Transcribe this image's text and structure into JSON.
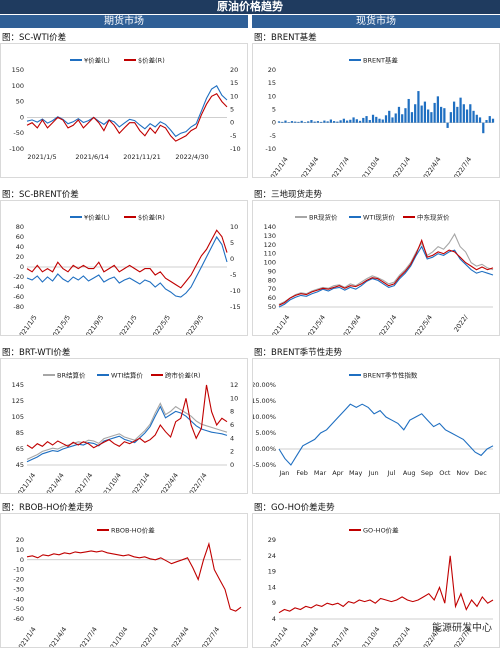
{
  "page_title": "原油价格趋势",
  "columns": {
    "left": "期货市场",
    "right": "现货市场"
  },
  "watermark": "能源研发中心",
  "colors": {
    "blue": "#1f6fc1",
    "red": "#c00000",
    "grey": "#a6a6a6"
  },
  "chart_data": [
    {
      "id": "sc_wti",
      "type": "line",
      "title": "图：SC-WTI价差",
      "x_ticks": [
        "2021/1/5",
        "2021/6/14",
        "2021/11/21",
        "2022/4/30"
      ],
      "y_ticks": [
        "-100",
        "-50",
        "0",
        "50",
        "100",
        "150"
      ],
      "y2_ticks": [
        "-10",
        "-5",
        "0",
        "5",
        "10",
        "15",
        "20"
      ],
      "ylim": [
        -100,
        150
      ],
      "y2lim": [
        -10,
        20
      ],
      "dual": true,
      "series": [
        {
          "name": "¥价差(L)",
          "color": "blue",
          "axis": "L",
          "values": [
            -12,
            -8,
            -15,
            -5,
            -18,
            -10,
            2,
            -6,
            -20,
            -14,
            -4,
            -16,
            -10,
            0,
            -12,
            -22,
            -8,
            -14,
            -30,
            -18,
            -6,
            -10,
            -24,
            -36,
            -20,
            -30,
            -14,
            -22,
            -40,
            -60,
            -50,
            -45,
            -30,
            -20,
            20,
            60,
            90,
            100,
            70,
            55
          ]
        },
        {
          "name": "$价差(R)",
          "color": "red",
          "axis": "R",
          "values": [
            -1,
            0,
            -2,
            1,
            -2,
            0,
            2,
            1,
            -2,
            -1,
            1,
            -2,
            0,
            2,
            0,
            -3,
            1,
            -1,
            -4,
            -2,
            0,
            0,
            -3,
            -5,
            -2,
            -4,
            -1,
            -2,
            -5,
            -7,
            -6,
            -5,
            -3,
            -2,
            3,
            7,
            10,
            11,
            8,
            6
          ]
        }
      ]
    },
    {
      "id": "brent_basis",
      "type": "bar",
      "title": "图：BRENT基差",
      "x_ticks": [
        "2021/1/4",
        "2021/4/4",
        "2021/7/4",
        "2021/10/4",
        "2022/1/4",
        "2022/4/4",
        "2022/7/4"
      ],
      "y_ticks": [
        "-10",
        "-5",
        "0",
        "5",
        "10",
        "15",
        "20"
      ],
      "ylim": [
        -10,
        20
      ],
      "series": [
        {
          "name": "BRENT基差",
          "color": "blue",
          "values": [
            0.5,
            0.3,
            0.8,
            0.2,
            0.6,
            0.4,
            0.3,
            0.7,
            0.2,
            0.5,
            1.0,
            0.4,
            0.6,
            0.3,
            0.8,
            0.5,
            1.2,
            0.6,
            0.4,
            0.9,
            1.5,
            0.8,
            1.1,
            2.0,
            1.3,
            0.7,
            1.8,
            2.5,
            1.0,
            3.0,
            2.2,
            1.5,
            1.2,
            2.8,
            4.5,
            2.0,
            3.5,
            6.0,
            3.2,
            5.5,
            9.0,
            4.0,
            7.0,
            12.0,
            6.5,
            8.0,
            5.0,
            4.0,
            7.5,
            10.0,
            6.0,
            5.5,
            -2.0,
            4.0,
            8.0,
            6.0,
            9.5,
            7.0,
            5.0,
            7.0,
            4.5,
            3.0,
            2.0,
            -4.0,
            1.0,
            2.5,
            1.5
          ]
        }
      ]
    },
    {
      "id": "sc_brent",
      "type": "line",
      "title": "图：SC-BRENT价差",
      "x_ticks": [
        "2021/1/5",
        "2021/5/5",
        "2021/9/5",
        "2022/1/5",
        "2022/5/5",
        "2022/9/5"
      ],
      "y_ticks": [
        "-80",
        "-60",
        "-40",
        "-20",
        "0",
        "20",
        "40",
        "60",
        "80"
      ],
      "y2_ticks": [
        "-15",
        "-10",
        "-5",
        "0",
        "5",
        "10"
      ],
      "ylim": [
        -80,
        80
      ],
      "y2lim": [
        -15,
        10
      ],
      "dual": true,
      "series": [
        {
          "name": "¥价差(L)",
          "color": "blue",
          "axis": "L",
          "values": [
            -22,
            -26,
            -18,
            -30,
            -20,
            -28,
            -14,
            -24,
            -30,
            -20,
            -26,
            -18,
            -28,
            -22,
            -16,
            -30,
            -24,
            -20,
            -32,
            -26,
            -22,
            -28,
            -34,
            -26,
            -30,
            -40,
            -32,
            -44,
            -50,
            -58,
            -60,
            -52,
            -40,
            -20,
            0,
            20,
            40,
            60,
            45,
            10
          ]
        },
        {
          "name": "$价差(R)",
          "color": "red",
          "axis": "R",
          "values": [
            -3,
            -4,
            -2,
            -4,
            -3,
            -4,
            -1,
            -3,
            -4,
            -2,
            -3,
            -2,
            -3,
            -3,
            -1,
            -4,
            -3,
            -2,
            -4,
            -3,
            -2,
            -3,
            -4,
            -3,
            -3,
            -5,
            -4,
            -6,
            -7,
            -8,
            -9,
            -7,
            -5,
            -2,
            1,
            3,
            6,
            9,
            7,
            2
          ]
        }
      ]
    },
    {
      "id": "three_spot",
      "type": "line",
      "title": "图：三地现货走势",
      "x_ticks": [
        "2021/1/4",
        "2021/5/4",
        "2021/9/4",
        "2022/1/4",
        "2022/5/4",
        "2022/"
      ],
      "y_ticks": [
        "50",
        "60",
        "70",
        "80",
        "90",
        "100",
        "110",
        "120",
        "130",
        "140"
      ],
      "ylim": [
        50,
        140
      ],
      "series": [
        {
          "name": "BR现货价",
          "color": "grey",
          "values": [
            53,
            56,
            60,
            64,
            66,
            65,
            68,
            70,
            72,
            71,
            74,
            75,
            72,
            76,
            74,
            78,
            82,
            85,
            83,
            80,
            76,
            78,
            86,
            92,
            100,
            112,
            122,
            108,
            112,
            118,
            115,
            122,
            132,
            118,
            112,
            100,
            96,
            98,
            94,
            92
          ]
        },
        {
          "name": "WTI现货价",
          "color": "blue",
          "values": [
            50,
            53,
            58,
            61,
            63,
            62,
            65,
            67,
            70,
            68,
            71,
            72,
            69,
            72,
            70,
            74,
            79,
            82,
            80,
            76,
            72,
            74,
            82,
            88,
            96,
            108,
            118,
            104,
            106,
            110,
            108,
            112,
            114,
            104,
            98,
            92,
            88,
            90,
            88,
            86
          ]
        },
        {
          "name": "中东现货价",
          "color": "red",
          "values": [
            52,
            55,
            60,
            63,
            65,
            64,
            67,
            69,
            71,
            70,
            72,
            74,
            71,
            74,
            73,
            76,
            80,
            83,
            82,
            78,
            74,
            76,
            84,
            90,
            98,
            110,
            125,
            106,
            108,
            112,
            110,
            114,
            112,
            106,
            100,
            96,
            92,
            95,
            92,
            94
          ]
        }
      ]
    },
    {
      "id": "brt_wti",
      "type": "line",
      "title": "图：BRT-WTI价差",
      "x_ticks": [
        "2021/1/4",
        "2021/4/4",
        "2021/7/4",
        "2021/10/4",
        "2022/1/4",
        "2022/4/4",
        "2022/7/4"
      ],
      "y_ticks": [
        "45",
        "65",
        "85",
        "105",
        "125",
        "145"
      ],
      "y2_ticks": [
        "0",
        "2",
        "4",
        "6",
        "8",
        "10",
        "12"
      ],
      "ylim": [
        45,
        145
      ],
      "y2lim": [
        0,
        12
      ],
      "dual": true,
      "series": [
        {
          "name": "BR结算价",
          "color": "grey",
          "axis": "L",
          "values": [
            52,
            55,
            58,
            62,
            64,
            66,
            65,
            68,
            70,
            72,
            74,
            73,
            76,
            75,
            72,
            78,
            80,
            82,
            84,
            80,
            78,
            76,
            82,
            88,
            96,
            110,
            122,
            108,
            112,
            118,
            114,
            110,
            106,
            100,
            96,
            94,
            92,
            90,
            88,
            86
          ]
        },
        {
          "name": "WTI结算价",
          "color": "blue",
          "axis": "L",
          "values": [
            49,
            52,
            55,
            59,
            61,
            63,
            62,
            65,
            67,
            69,
            71,
            70,
            73,
            72,
            69,
            75,
            77,
            79,
            81,
            77,
            75,
            73,
            79,
            85,
            93,
            106,
            118,
            104,
            108,
            112,
            110,
            106,
            100,
            94,
            90,
            88,
            86,
            85,
            84,
            82
          ]
        },
        {
          "name": "跨市价差(R)",
          "color": "red",
          "axis": "R",
          "values": [
            3,
            2.5,
            3.2,
            2.8,
            3.5,
            3,
            3.6,
            3.2,
            2.8,
            3.4,
            3,
            3.5,
            3.2,
            2.6,
            3,
            3.4,
            3.8,
            3.2,
            2.8,
            3.5,
            3.2,
            3.6,
            4,
            3.4,
            3.8,
            4.5,
            6,
            5,
            4.2,
            6.5,
            7,
            10,
            6,
            4,
            5.5,
            12,
            8,
            6,
            7,
            6.5
          ]
        }
      ]
    },
    {
      "id": "brent_season",
      "type": "line",
      "title": "图：BRENT季节性走势",
      "x_ticks": [
        "Jan",
        "Feb",
        "Mar",
        "Apr",
        "May",
        "Jun",
        "Jul",
        "Aug",
        "Sep",
        "Oct",
        "Nov",
        "Dec"
      ],
      "y_ticks": [
        "-5.00%",
        "0.00%",
        "5.00%",
        "10.00%",
        "15.00%",
        "20.00%"
      ],
      "ylim": [
        -5,
        20
      ],
      "series": [
        {
          "name": "BRENT季节性指数",
          "color": "blue",
          "values": [
            0,
            -3,
            -5,
            -2,
            1,
            2,
            3,
            5,
            6,
            8,
            10,
            12,
            14,
            13,
            14,
            13,
            11,
            12,
            10,
            9,
            8,
            6,
            9,
            10,
            11,
            9,
            7,
            8,
            6,
            5,
            4,
            3,
            1,
            -1,
            -2,
            0,
            1
          ]
        }
      ]
    },
    {
      "id": "rbob_ho",
      "type": "line",
      "title": "图：RBOB-HO价差走势",
      "x_ticks": [
        "2021/1/4",
        "2021/4/4",
        "2021/7/4",
        "2021/10/4",
        "2022/1/4",
        "2022/4/4",
        "2022/7/4"
      ],
      "y_ticks": [
        "-60",
        "-50",
        "-40",
        "-30",
        "-20",
        "-10",
        "0",
        "10",
        "20"
      ],
      "ylim": [
        -60,
        20
      ],
      "series": [
        {
          "name": "RBOB-HO价差",
          "color": "red",
          "values": [
            3,
            4,
            2,
            5,
            4,
            6,
            5,
            7,
            6,
            8,
            7,
            8,
            9,
            8,
            9,
            7,
            6,
            5,
            4,
            5,
            3,
            2,
            3,
            1,
            0,
            2,
            -1,
            -4,
            -2,
            0,
            2,
            -8,
            -20,
            0,
            16,
            -10,
            -20,
            -30,
            -50,
            -52,
            -48
          ]
        }
      ]
    },
    {
      "id": "go_ho",
      "type": "line",
      "title": "图：GO-HO价差走势",
      "x_ticks": [
        "2021/1/4",
        "2021/4/4",
        "2021/7/4",
        "2021/10/4",
        "2022/1/4",
        "2022/4/4",
        "2022/7/4"
      ],
      "y_ticks": [
        "4",
        "9",
        "14",
        "19",
        "24",
        "29"
      ],
      "ylim": [
        4,
        29
      ],
      "series": [
        {
          "name": "GO-HO价差",
          "color": "red",
          "values": [
            6,
            7,
            6.5,
            7.5,
            7,
            8,
            7.5,
            8.5,
            8,
            9,
            8.5,
            9,
            8,
            9.5,
            9,
            10,
            9.5,
            10,
            9,
            10.5,
            10,
            9.5,
            10,
            11,
            10,
            9.5,
            10,
            11,
            12,
            10,
            14,
            9,
            24,
            8,
            12,
            7,
            10,
            8,
            11,
            9,
            10
          ]
        }
      ]
    }
  ]
}
